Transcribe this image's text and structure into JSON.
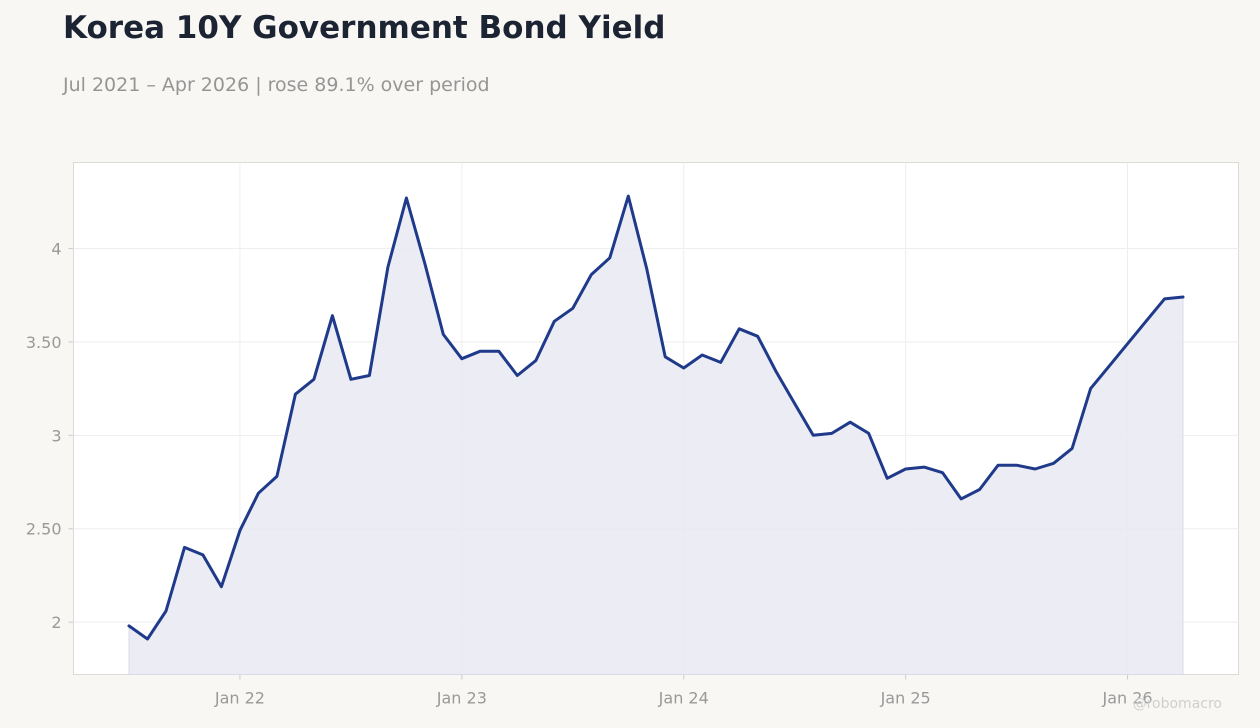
{
  "title": "Korea 10Y Government Bond Yield",
  "subtitle": "Jul 2021 – Apr 2026 | rose 89.1% over period",
  "watermark": "@robomacro",
  "colors": {
    "line": "#1f3a8a",
    "fill": "#e8e9f2",
    "background": "#f8f7f4",
    "plot_bg": "#ffffff"
  },
  "chart_data": {
    "type": "area",
    "grid": true,
    "xlim": [
      "2021-04",
      "2026-07"
    ],
    "ylim": [
      1.72,
      4.46
    ],
    "x_ticks": [
      {
        "x": "2022-01",
        "label": "Jan 22"
      },
      {
        "x": "2023-01",
        "label": "Jan 23"
      },
      {
        "x": "2024-01",
        "label": "Jan 24"
      },
      {
        "x": "2025-01",
        "label": "Jan 25"
      },
      {
        "x": "2026-01",
        "label": "Jan 26"
      }
    ],
    "y_ticks": [
      {
        "y": 2,
        "label": "2"
      },
      {
        "y": 2.5,
        "label": "2.50"
      },
      {
        "y": 3,
        "label": "3"
      },
      {
        "y": 3.5,
        "label": "3.50"
      },
      {
        "y": 4,
        "label": "4"
      }
    ],
    "series": [
      {
        "x": [
          "2021-07",
          "2021-08",
          "2021-09",
          "2021-10",
          "2021-11",
          "2021-12",
          "2022-01",
          "2022-02",
          "2022-03",
          "2022-04",
          "2022-05",
          "2022-06",
          "2022-07",
          "2022-08",
          "2022-09",
          "2022-10",
          "2022-11",
          "2022-12",
          "2023-01",
          "2023-02",
          "2023-03",
          "2023-04",
          "2023-05",
          "2023-06",
          "2023-07",
          "2023-08",
          "2023-09",
          "2023-10",
          "2023-11",
          "2023-12",
          "2024-01",
          "2024-02",
          "2024-03",
          "2024-04",
          "2024-05",
          "2024-06",
          "2024-07",
          "2024-08",
          "2024-09",
          "2024-10",
          "2024-11",
          "2024-12",
          "2025-01",
          "2025-02",
          "2025-03",
          "2025-04",
          "2025-05",
          "2025-06",
          "2025-07",
          "2025-08",
          "2025-09",
          "2025-10",
          "2025-11",
          "2025-12",
          "2026-01",
          "2026-02",
          "2026-03",
          "2026-04"
        ],
        "values": [
          1.98,
          1.91,
          2.06,
          2.4,
          2.36,
          2.19,
          2.49,
          2.69,
          2.78,
          3.22,
          3.3,
          3.64,
          3.3,
          3.32,
          3.9,
          4.27,
          3.92,
          3.54,
          3.41,
          3.45,
          3.45,
          3.32,
          3.4,
          3.61,
          3.68,
          3.86,
          3.95,
          4.28,
          3.89,
          3.42,
          3.36,
          3.43,
          3.39,
          3.57,
          3.53,
          3.34,
          3.17,
          3.0,
          3.01,
          3.07,
          3.01,
          2.77,
          2.82,
          2.83,
          2.8,
          2.66,
          2.71,
          2.84,
          2.84,
          2.82,
          2.85,
          2.93,
          3.25,
          3.37,
          3.49,
          3.61,
          3.73,
          3.74
        ]
      }
    ]
  }
}
